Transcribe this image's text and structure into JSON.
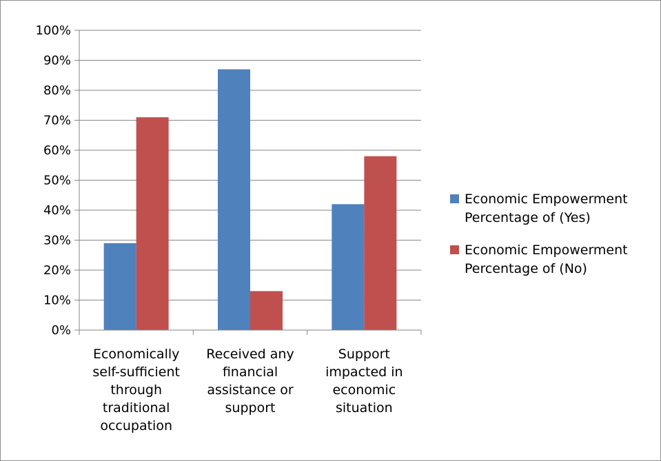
{
  "chart_data": {
    "type": "bar",
    "categories": [
      [
        "Economically",
        "self-sufficient",
        "through",
        "traditional",
        "occupation"
      ],
      [
        "Received any",
        "financial",
        "assistance or",
        "support"
      ],
      [
        "Support",
        "impacted in",
        "economic",
        "situation"
      ]
    ],
    "series": [
      {
        "name": [
          "Economic Empowerment",
          "Percentage of (Yes)"
        ],
        "values": [
          29,
          87,
          42
        ],
        "color": "#4f81bd"
      },
      {
        "name": [
          "Economic Empowerment",
          "Percentage of (No)"
        ],
        "values": [
          71,
          13,
          58
        ],
        "color": "#c0504d"
      }
    ],
    "yticks": [
      "0%",
      "10%",
      "20%",
      "30%",
      "40%",
      "50%",
      "60%",
      "70%",
      "80%",
      "90%",
      "100%"
    ],
    "ylim": [
      0,
      100
    ],
    "grid": true,
    "legend": "right"
  }
}
